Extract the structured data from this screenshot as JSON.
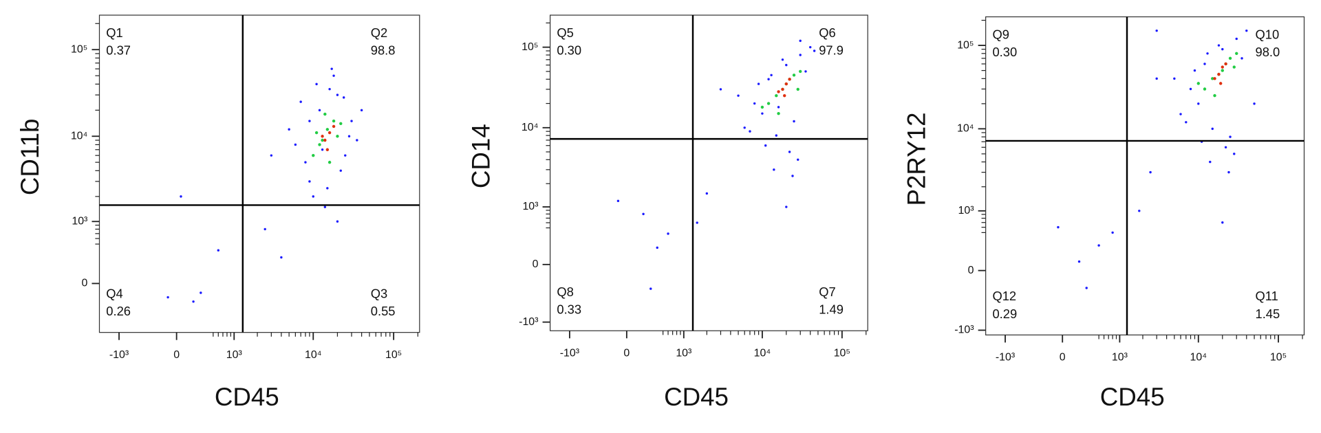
{
  "chart_data": [
    {
      "type": "scatter",
      "scale": "biexponential",
      "x_label": "CD45",
      "y_label": "CD11b",
      "xlim": [
        -1800,
        210000
      ],
      "ylim": [
        -680,
        250000
      ],
      "xticks": [
        {
          "value": -1000,
          "label": "-10³"
        },
        0,
        {
          "value": 1000,
          "label": "10³"
        },
        {
          "value": 10000,
          "label": "10⁴"
        },
        {
          "value": 100000,
          "label": "10⁵"
        }
      ],
      "yticks": [
        0,
        {
          "value": 1000,
          "label": "10³"
        },
        {
          "value": 10000,
          "label": "10⁴"
        },
        {
          "value": 100000,
          "label": "10⁵"
        }
      ],
      "gate": {
        "x": 1300,
        "y": 1580
      },
      "quadrants": [
        {
          "name": "Q1",
          "value": 0.37,
          "position": "upper-left"
        },
        {
          "name": "Q2",
          "value": 98.8,
          "position": "upper-right"
        },
        {
          "name": "Q3",
          "value": 0.55,
          "position": "lower-right"
        },
        {
          "name": "Q4",
          "value": 0.26,
          "position": "lower-left"
        }
      ],
      "series": [
        {
          "color": "#1a1aff",
          "x": [
            8000,
            12000,
            20000,
            30000,
            6000,
            9000,
            15000,
            25000,
            35000,
            40000,
            5000,
            7000,
            11000,
            18000,
            22000,
            28000,
            10000,
            14000,
            16000,
            9000,
            13000,
            24000,
            3000,
            2500,
            4000,
            600,
            300,
            200,
            -100,
            50,
            20000,
            17000
          ],
          "y": [
            5000,
            20000,
            30000,
            15000,
            8000,
            3000,
            2500,
            6000,
            9000,
            20000,
            12000,
            25000,
            40000,
            50000,
            4000,
            10000,
            2000,
            1500,
            35000,
            15000,
            7000,
            28000,
            6000,
            800,
            300,
            400,
            -100,
            -200,
            -150,
            2000,
            1000,
            60000
          ]
        },
        {
          "color": "#22cc44",
          "x": [
            12000,
            15000,
            18000,
            10000,
            20000,
            14000,
            16000,
            13000,
            22000,
            11000
          ],
          "y": [
            8000,
            12000,
            15000,
            6000,
            10000,
            18000,
            5000,
            9000,
            14000,
            11000
          ]
        },
        {
          "color": "#e03010",
          "x": [
            14000,
            16000,
            15000,
            18000,
            13000
          ],
          "y": [
            9000,
            11000,
            7000,
            13000,
            10000
          ]
        }
      ]
    },
    {
      "type": "scatter",
      "scale": "biexponential",
      "x_label": "CD45",
      "y_label": "CD14",
      "xlim": [
        -1800,
        210000
      ],
      "ylim": [
        -1300,
        250000
      ],
      "xticks": [
        {
          "value": -1000,
          "label": "-10³"
        },
        0,
        {
          "value": 1000,
          "label": "10³"
        },
        {
          "value": 10000,
          "label": "10⁴"
        },
        {
          "value": 100000,
          "label": "10⁵"
        }
      ],
      "yticks": [
        {
          "value": -1000,
          "label": "-10³"
        },
        0,
        {
          "value": 1000,
          "label": "10³"
        },
        {
          "value": 10000,
          "label": "10⁴"
        },
        {
          "value": 100000,
          "label": "10⁵"
        }
      ],
      "gate": {
        "x": 1320,
        "y": 7250
      },
      "quadrants": [
        {
          "name": "Q5",
          "value": 0.3,
          "label": "0.30",
          "position": "upper-left"
        },
        {
          "name": "Q6",
          "value": 97.9,
          "position": "upper-right"
        },
        {
          "name": "Q7",
          "value": 1.49,
          "position": "lower-right"
        },
        {
          "name": "Q8",
          "value": 0.33,
          "position": "lower-left"
        }
      ],
      "series": [
        {
          "color": "#1a1aff",
          "x": [
            8000,
            12000,
            20000,
            30000,
            40000,
            6000,
            10000,
            15000,
            25000,
            35000,
            5000,
            9000,
            18000,
            22000,
            28000,
            14000,
            16000,
            11000,
            45000,
            7000,
            3000,
            2000,
            1500,
            600,
            400,
            300,
            200,
            -100,
            24000,
            20000,
            13000,
            30000
          ],
          "y": [
            20000,
            40000,
            60000,
            80000,
            100000,
            10000,
            15000,
            8000,
            12000,
            50000,
            25000,
            35000,
            70000,
            5000,
            4000,
            3000,
            18000,
            6000,
            90000,
            9000,
            30000,
            1500,
            600,
            400,
            200,
            -300,
            800,
            1200,
            2500,
            1000,
            45000,
            120000
          ]
        },
        {
          "color": "#22cc44",
          "x": [
            15000,
            20000,
            25000,
            12000,
            18000,
            22000,
            30000,
            16000,
            10000,
            28000
          ],
          "y": [
            25000,
            35000,
            45000,
            20000,
            30000,
            40000,
            50000,
            15000,
            18000,
            30000
          ]
        },
        {
          "color": "#e03010",
          "x": [
            18000,
            20000,
            22000,
            16000,
            19000
          ],
          "y": [
            30000,
            35000,
            40000,
            28000,
            25000
          ]
        }
      ]
    },
    {
      "type": "scatter",
      "scale": "biexponential",
      "x_label": "CD45",
      "y_label": "P2RY12",
      "xlim": [
        -1800,
        210000
      ],
      "ylim": [
        -1150,
        220000
      ],
      "xticks": [
        {
          "value": -1000,
          "label": "-10³"
        },
        0,
        {
          "value": 1000,
          "label": "10³"
        },
        {
          "value": 10000,
          "label": "10⁴"
        },
        {
          "value": 100000,
          "label": "10⁵"
        }
      ],
      "yticks": [
        {
          "value": -1000,
          "label": "-10³"
        },
        0,
        {
          "value": 1000,
          "label": "10³"
        },
        {
          "value": 10000,
          "label": "10⁴"
        },
        {
          "value": 100000,
          "label": "10⁵"
        }
      ],
      "gate": {
        "x": 1250,
        "y": 7170
      },
      "quadrants": [
        {
          "name": "Q9",
          "value": 0.3,
          "label": "0.30",
          "position": "upper-left"
        },
        {
          "name": "Q10",
          "value": 98,
          "label": "98.0",
          "position": "upper-right"
        },
        {
          "name": "Q11",
          "value": 1.45,
          "position": "lower-right"
        },
        {
          "name": "Q12",
          "value": 0.29,
          "position": "lower-left"
        }
      ],
      "series": [
        {
          "color": "#1a1aff",
          "x": [
            8000,
            12000,
            20000,
            30000,
            40000,
            6000,
            10000,
            15000,
            25000,
            35000,
            5000,
            9000,
            18000,
            22000,
            28000,
            14000,
            16000,
            11000,
            50000,
            7000,
            3000,
            2500,
            1800,
            800,
            500,
            300,
            200,
            -50,
            24000,
            20000,
            13000,
            3000
          ],
          "y": [
            30000,
            60000,
            90000,
            120000,
            150000,
            15000,
            20000,
            10000,
            8000,
            70000,
            40000,
            50000,
            100000,
            6000,
            5000,
            4000,
            25000,
            7000,
            20000,
            12000,
            40000,
            3000,
            1000,
            500,
            300,
            -200,
            100,
            600,
            3000,
            700,
            80000,
            150000
          ]
        },
        {
          "color": "#22cc44",
          "x": [
            15000,
            20000,
            25000,
            12000,
            18000,
            22000,
            30000,
            16000,
            10000,
            28000
          ],
          "y": [
            40000,
            50000,
            70000,
            30000,
            45000,
            60000,
            80000,
            25000,
            35000,
            55000
          ]
        },
        {
          "color": "#e03010",
          "x": [
            18000,
            20000,
            22000,
            16000,
            19000
          ],
          "y": [
            45000,
            55000,
            60000,
            40000,
            35000
          ]
        }
      ]
    }
  ]
}
